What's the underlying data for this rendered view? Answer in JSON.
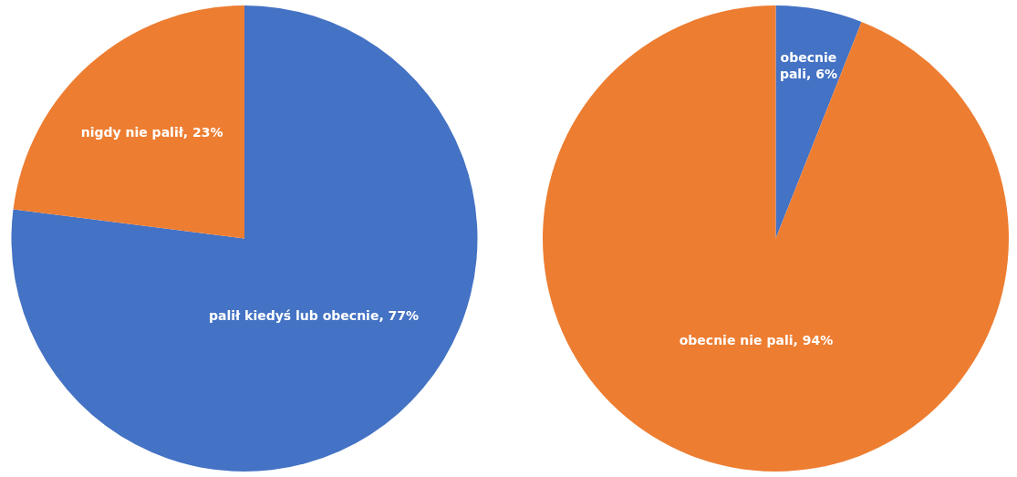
{
  "chart_data": [
    {
      "type": "pie",
      "categories": [
        "palił kiedyś lub obecnie",
        "nigdy nie palił"
      ],
      "values": [
        77,
        23
      ],
      "colors": [
        "#4472c4",
        "#ed7d31"
      ],
      "value_labels": [
        "77%",
        "23%"
      ],
      "legend": false
    },
    {
      "type": "pie",
      "categories": [
        "obecnie pali",
        "obecnie nie pali"
      ],
      "values": [
        6,
        94
      ],
      "colors": [
        "#4472c4",
        "#ed7d31"
      ],
      "value_labels": [
        "6%",
        "94%"
      ],
      "legend": false
    }
  ]
}
